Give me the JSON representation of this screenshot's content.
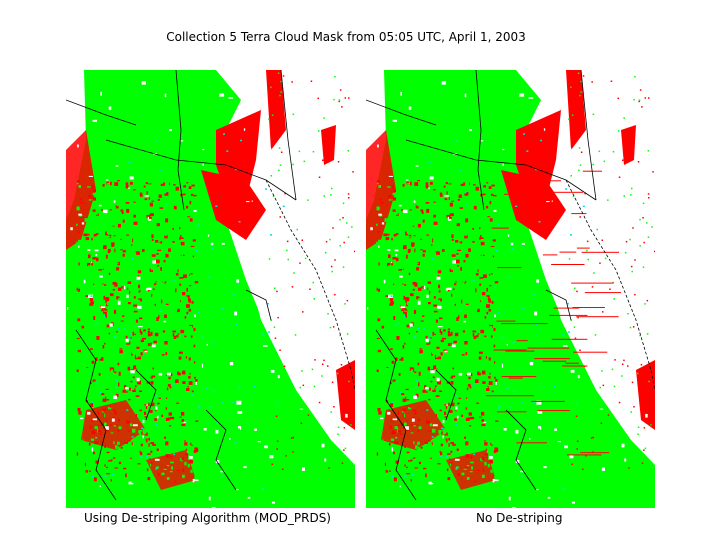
{
  "figure": {
    "title": "Collection 5 Terra Cloud Mask from 05:05 UTC, April 1, 2003"
  },
  "panels": [
    {
      "caption": "Using De-striping Algorithm (MOD_PRDS)"
    },
    {
      "caption": "No De-striping"
    }
  ],
  "colors": {
    "cloudy": "#00ff00",
    "probably_clear": "#ff0000",
    "clear": "#ffffff",
    "uncertain": "#00e0e0",
    "coastline": "#000000"
  }
}
